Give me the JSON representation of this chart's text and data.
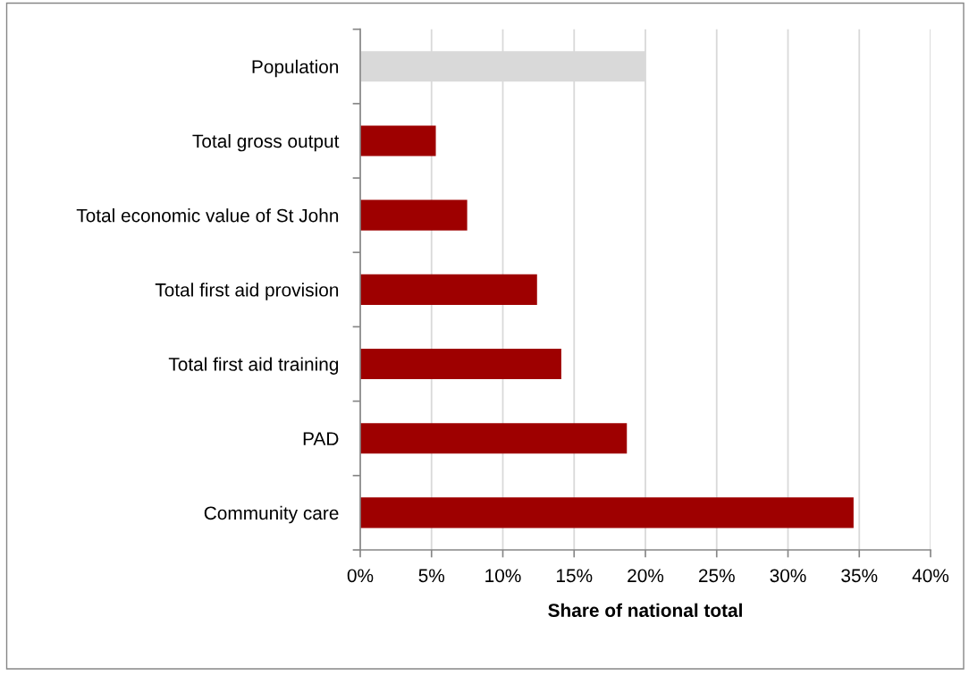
{
  "chart_data": {
    "type": "bar",
    "orientation": "horizontal",
    "xlabel": "Share of national total",
    "categories": [
      "Population",
      "Total gross output",
      "Total economic value of St John",
      "Total first aid provision",
      "Total first aid training",
      "PAD",
      "Community care"
    ],
    "values": [
      20.0,
      5.3,
      7.5,
      12.4,
      14.1,
      18.7,
      34.6
    ],
    "colors": [
      "#d9d9d9",
      "#9e0000",
      "#9e0000",
      "#9e0000",
      "#9e0000",
      "#9e0000",
      "#9e0000"
    ],
    "xlim": [
      0,
      40
    ],
    "xticks": [
      {
        "value": 0,
        "label": "0%"
      },
      {
        "value": 5,
        "label": "5%"
      },
      {
        "value": 10,
        "label": "10%"
      },
      {
        "value": 15,
        "label": "15%"
      },
      {
        "value": 20,
        "label": "20%"
      },
      {
        "value": 25,
        "label": "25%"
      },
      {
        "value": 30,
        "label": "30%"
      },
      {
        "value": 35,
        "label": "35%"
      },
      {
        "value": 40,
        "label": "40%"
      }
    ],
    "grid": "x"
  }
}
